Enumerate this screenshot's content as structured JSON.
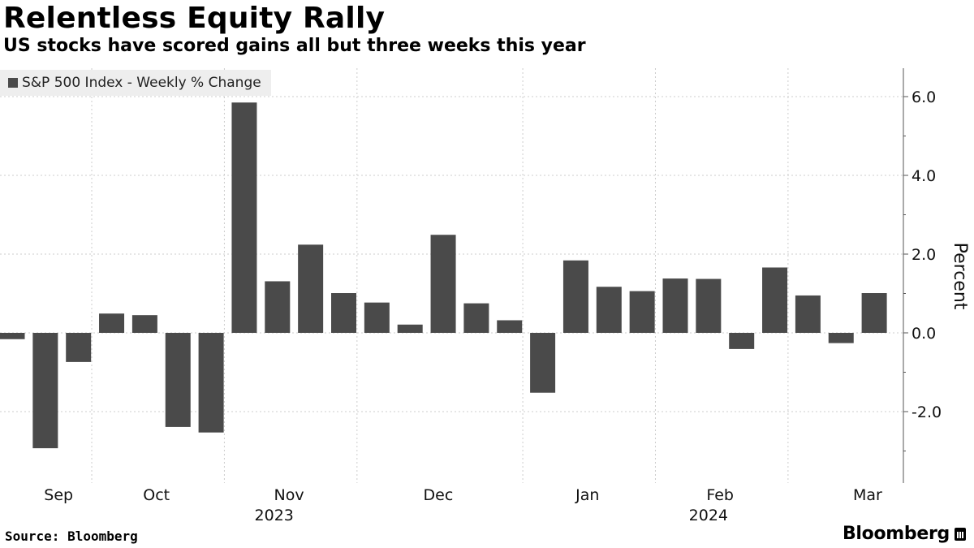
{
  "title": "Relentless Equity Rally",
  "subtitle": "US stocks have scored gains all but three weeks this year",
  "source": "Source: Bloomberg",
  "brand": "Bloomberg",
  "colors": {
    "bar": "#4a4a4a",
    "grid": "#cccccc",
    "axis": "#555555",
    "legend_bg": "#eeeeee"
  },
  "chart_data": {
    "type": "bar",
    "series": [
      {
        "name": "S&P 500 Index - Weekly % Change",
        "values": [
          -0.16,
          -2.93,
          -0.74,
          0.49,
          0.45,
          -2.39,
          -2.53,
          5.85,
          1.31,
          2.24,
          1.01,
          0.77,
          0.21,
          2.49,
          0.75,
          0.32,
          -1.52,
          1.84,
          1.17,
          1.06,
          1.38,
          1.37,
          -0.41,
          1.66,
          0.95,
          -0.26,
          1.01
        ]
      }
    ],
    "ylabel": "Percent",
    "ylim": [
      -3.6,
      6.8
    ],
    "yticks": [
      6.0,
      4.0,
      2.0,
      0.0,
      -2.0
    ],
    "ytick_labels": [
      "6.0",
      "4.0",
      "2.0",
      "0.0",
      "-2.0"
    ],
    "x_month_labels": [
      {
        "label": "Sep",
        "week": 1.4
      },
      {
        "label": "Oct",
        "week": 4.35
      },
      {
        "label": "Nov",
        "week": 8.35
      },
      {
        "label": "Dec",
        "week": 12.85
      },
      {
        "label": "Jan",
        "week": 17.35
      },
      {
        "label": "Feb",
        "week": 21.35
      },
      {
        "label": "Mar",
        "week": 25.8
      }
    ],
    "x_month_boundaries": [
      2.4,
      6.4,
      10.4,
      15.4,
      19.4,
      23.4
    ],
    "x_year_labels": [
      {
        "label": "2023",
        "week": 7.9
      },
      {
        "label": "2024",
        "week": 21.0
      }
    ],
    "grid": true
  }
}
